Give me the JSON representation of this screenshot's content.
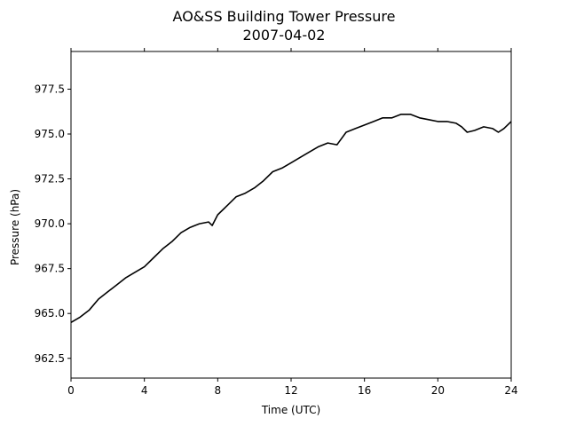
{
  "chart_data": {
    "type": "line",
    "title": "AO&SS Building Tower Pressure",
    "subtitle": "2007-04-02",
    "xlabel": "Time (UTC)",
    "ylabel": "Pressure (hPa)",
    "xlim": [
      0,
      24
    ],
    "ylim": [
      961.4,
      979.6
    ],
    "xticks": [
      0,
      4,
      8,
      12,
      16,
      20,
      24
    ],
    "yticks": [
      962.5,
      965.0,
      967.5,
      970.0,
      972.5,
      975.0,
      977.5
    ],
    "ytick_labels": [
      "962.5",
      "965.0",
      "967.5",
      "970.0",
      "972.5",
      "975.0",
      "977.5"
    ],
    "grid": false,
    "line_color": "#000000",
    "series": [
      {
        "x": [
          0.0,
          0.5,
          1.0,
          1.5,
          2.0,
          2.5,
          3.0,
          3.5,
          4.0,
          4.5,
          5.0,
          5.5,
          6.0,
          6.5,
          7.0,
          7.5,
          7.7,
          8.0,
          8.5,
          9.0,
          9.5,
          10.0,
          10.5,
          11.0,
          11.5,
          12.0,
          12.5,
          13.0,
          13.5,
          14.0,
          14.5,
          15.0,
          15.5,
          16.0,
          16.5,
          17.0,
          17.5,
          18.0,
          18.5,
          19.0,
          19.5,
          20.0,
          20.5,
          21.0,
          21.3,
          21.6,
          22.0,
          22.5,
          23.0,
          23.3,
          23.6,
          24.0
        ],
        "y": [
          964.5,
          964.8,
          965.2,
          965.8,
          966.2,
          966.6,
          967.0,
          967.3,
          967.6,
          968.1,
          968.6,
          969.0,
          969.5,
          969.8,
          970.0,
          970.1,
          969.9,
          970.5,
          971.0,
          971.5,
          971.7,
          972.0,
          972.4,
          972.9,
          973.1,
          973.4,
          973.7,
          974.0,
          974.3,
          974.5,
          974.4,
          975.1,
          975.3,
          975.5,
          975.7,
          975.9,
          975.9,
          976.1,
          976.1,
          975.9,
          975.8,
          975.7,
          975.7,
          975.6,
          975.4,
          975.1,
          975.2,
          975.4,
          975.3,
          975.1,
          975.3,
          975.7
        ]
      }
    ]
  }
}
